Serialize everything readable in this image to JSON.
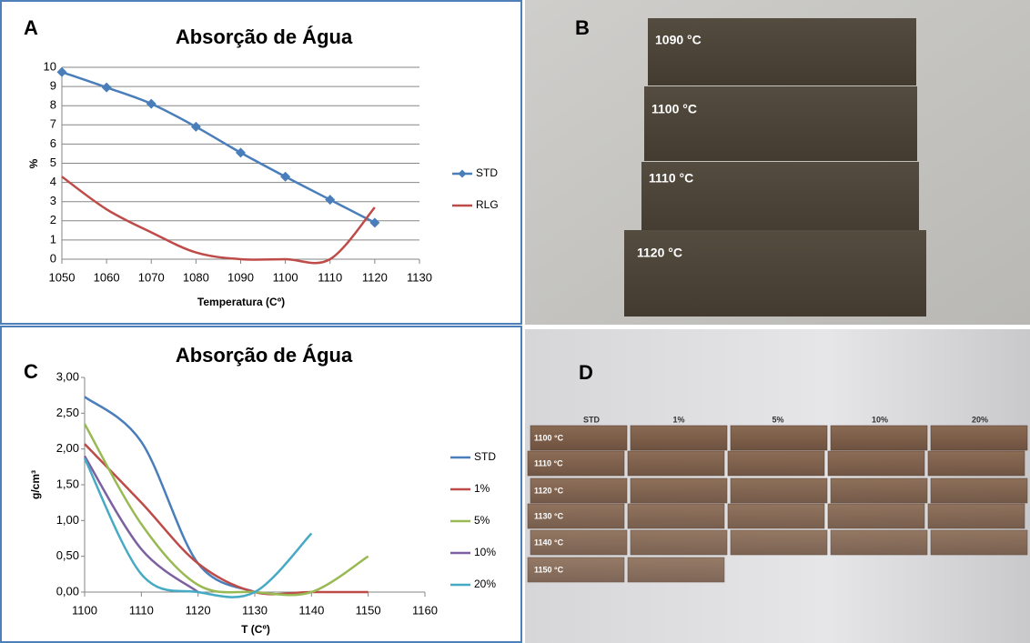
{
  "panel_labels": [
    "A",
    "B",
    "C",
    "D"
  ],
  "chart_data": [
    {
      "type": "line",
      "title": "Absorção de Água",
      "x_label": "Temperatura (Cº)",
      "y_label": "%",
      "x": [
        1050,
        1060,
        1070,
        1080,
        1090,
        1100,
        1110,
        1120
      ],
      "series": [
        {
          "name": "STD",
          "color": "#4a7ebb",
          "marker": "diamond",
          "values": [
            9.75,
            8.95,
            8.1,
            6.9,
            5.55,
            4.3,
            3.1,
            1.9
          ]
        },
        {
          "name": "RLG",
          "color": "#be4b48",
          "values": [
            4.3,
            2.6,
            1.4,
            0.35,
            0,
            0,
            0,
            2.7
          ]
        }
      ],
      "xlim": [
        1050,
        1130
      ],
      "xticks": [
        1050,
        1060,
        1070,
        1080,
        1090,
        1100,
        1110,
        1120,
        1130
      ],
      "ylim": [
        0,
        10
      ],
      "yticks": [
        0,
        1,
        2,
        3,
        4,
        5,
        6,
        7,
        8,
        9,
        10
      ],
      "grid": true,
      "legend": "right"
    },
    {
      "type": "line",
      "title": "Absorção de Água",
      "x_label": "T (Cº)",
      "y_label": "g/cm³",
      "x": [
        1100,
        1110,
        1120,
        1130,
        1140,
        1150
      ],
      "series": [
        {
          "name": "STD",
          "color": "#4a7ebb",
          "values": [
            2.73,
            2.1,
            0.4,
            0,
            null,
            null
          ]
        },
        {
          "name": "1%",
          "color": "#be4b48",
          "values": [
            2.07,
            1.25,
            0.4,
            0,
            0,
            0
          ]
        },
        {
          "name": "5%",
          "color": "#98b954",
          "values": [
            2.35,
            0.95,
            0.1,
            0,
            0,
            0.5
          ]
        },
        {
          "name": "10%",
          "color": "#7d60a0",
          "values": [
            1.9,
            0.6,
            0,
            null,
            null,
            null
          ]
        },
        {
          "name": "20%",
          "color": "#46aac5",
          "values": [
            1.87,
            0.25,
            0,
            0,
            0.82,
            null
          ]
        }
      ],
      "xlim": [
        1100,
        1160
      ],
      "xticks": [
        1100,
        1110,
        1120,
        1130,
        1140,
        1150,
        1160
      ],
      "ylim": [
        0,
        3
      ],
      "yticks": [
        {
          "value": 0,
          "label": "0,00"
        },
        {
          "value": 0.5,
          "label": "0,50"
        },
        {
          "value": 1,
          "label": "1,00"
        },
        {
          "value": 1.5,
          "label": "1,50"
        },
        {
          "value": 2,
          "label": "2,00"
        },
        {
          "value": 2.5,
          "label": "2,50"
        },
        {
          "value": 3,
          "label": "3,00"
        }
      ],
      "grid": false,
      "legend": "right"
    }
  ],
  "photo_b": {
    "labels": [
      "1090 °C",
      "1100 °C",
      "1110 °C",
      "1120 °C"
    ]
  },
  "photo_d": {
    "columns": [
      "STD",
      "1%",
      "5%",
      "10%",
      "20%"
    ],
    "rows": [
      "1100 °C",
      "1110 °C",
      "1120 °C",
      "1130 °C",
      "1140 °C",
      "1150 °C"
    ]
  }
}
